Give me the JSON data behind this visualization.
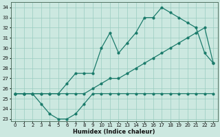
{
  "xlabel": "Humidex (Indice chaleur)",
  "bg_color": "#cce8e0",
  "grid_color": "#99ccc0",
  "line_color": "#1a7a6a",
  "xlim": [
    -0.5,
    23.5
  ],
  "ylim": [
    22.8,
    34.5
  ],
  "yticks": [
    23,
    24,
    25,
    26,
    27,
    28,
    29,
    30,
    31,
    32,
    33,
    34
  ],
  "xticks": [
    0,
    1,
    2,
    3,
    4,
    5,
    6,
    7,
    8,
    9,
    10,
    11,
    12,
    13,
    14,
    15,
    16,
    17,
    18,
    19,
    20,
    21,
    22,
    23
  ],
  "line1_x": [
    0,
    1,
    2,
    3,
    4,
    5,
    6,
    7,
    8,
    9,
    10,
    11,
    12,
    13,
    14,
    15,
    16,
    17,
    18,
    19,
    20,
    21,
    22,
    23
  ],
  "line1_y": [
    25.5,
    25.5,
    25.5,
    24.5,
    23.5,
    23.0,
    23.0,
    23.5,
    24.5,
    25.5,
    25.5,
    25.5,
    25.5,
    25.5,
    25.5,
    25.5,
    25.5,
    25.5,
    25.5,
    25.5,
    25.5,
    25.5,
    25.5,
    25.5
  ],
  "line2_x": [
    0,
    1,
    2,
    3,
    4,
    5,
    6,
    7,
    8,
    9,
    10,
    11,
    12,
    13,
    14,
    15,
    16,
    17,
    18,
    19,
    20,
    21,
    22,
    23
  ],
  "line2_y": [
    25.5,
    25.5,
    25.5,
    25.5,
    25.5,
    25.5,
    26.5,
    27.5,
    27.5,
    27.5,
    30.0,
    31.5,
    29.5,
    30.5,
    31.5,
    33.0,
    33.0,
    34.0,
    33.5,
    33.0,
    32.5,
    32.0,
    29.5,
    28.5
  ],
  "line3_x": [
    0,
    1,
    2,
    3,
    4,
    5,
    6,
    7,
    8,
    9,
    10,
    11,
    12,
    13,
    14,
    15,
    16,
    17,
    18,
    19,
    20,
    21,
    22,
    23
  ],
  "line3_y": [
    25.5,
    25.5,
    25.5,
    25.5,
    25.5,
    25.5,
    25.5,
    25.5,
    25.5,
    26.0,
    26.5,
    27.0,
    27.0,
    27.5,
    28.0,
    28.5,
    29.0,
    29.5,
    30.0,
    30.5,
    31.0,
    31.5,
    32.0,
    28.5
  ]
}
